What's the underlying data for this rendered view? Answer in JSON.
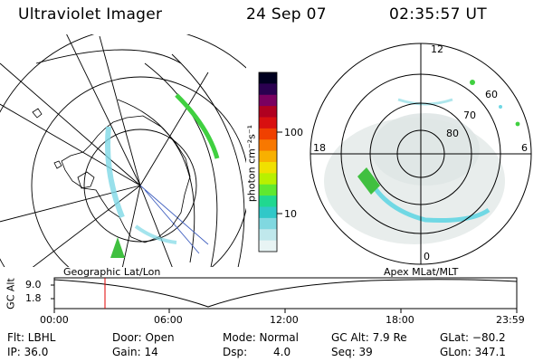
{
  "header": {
    "instrument": "Ultraviolet Imager",
    "date": "24 Sep 07",
    "time": "02:35:57 UT"
  },
  "panels": {
    "left_label": "Geographic Lat/Lon",
    "right_label": "Apex MLat/MLT"
  },
  "colorbar": {
    "unit_label": "photon cm⁻²s⁻¹",
    "ticks": [
      "100",
      "10"
    ],
    "colors": [
      "#000020",
      "#2a0050",
      "#7a0060",
      "#b00020",
      "#d81010",
      "#f04000",
      "#f87800",
      "#f8b000",
      "#f0e000",
      "#b8f000",
      "#60e830",
      "#20d890",
      "#30c8c8",
      "#80d8e0",
      "#c0e8ec",
      "#e8f4f4"
    ]
  },
  "polar_labels": {
    "mlt": [
      "12",
      "18",
      "6",
      "0"
    ],
    "mlat": [
      "60",
      "70",
      "80"
    ]
  },
  "altitude_plot": {
    "ylabel": "GC Alt",
    "yticks": [
      "9.0",
      "1.8"
    ],
    "xticks": [
      "00:00",
      "06:00",
      "12:00",
      "18:00",
      "23:59"
    ]
  },
  "info": {
    "flt": "Flt: LBHL",
    "ip": "IP: 36.0",
    "door": "Door: Open",
    "gain": "Gain: 14",
    "mode": "Mode: Normal",
    "dsp_label": "Dsp:",
    "dsp_value": "4.0",
    "gc_alt": "GC Alt: 7.9 Re",
    "seq": "Seq: 39",
    "glat": "GLat: −80.2",
    "glon": "GLon: 347.1"
  }
}
